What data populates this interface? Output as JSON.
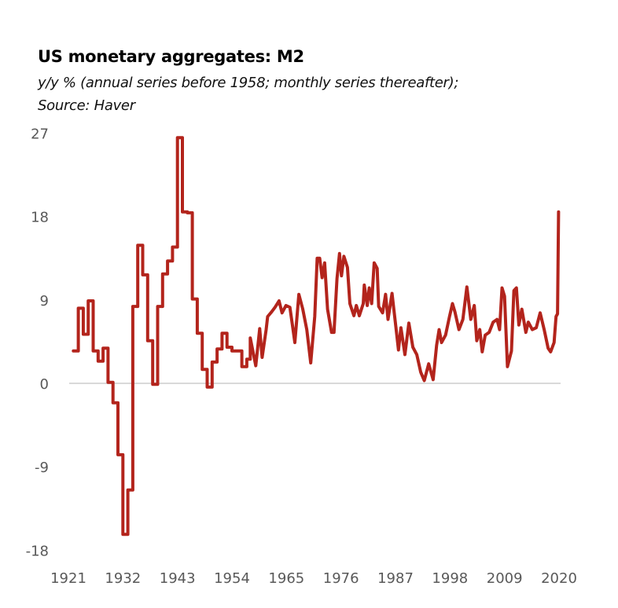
{
  "chart_data": {
    "type": "line",
    "title": "US monetary aggregates: M2",
    "subtitle_lines": [
      "y/y % (annual series before 1958; monthly series thereafter);",
      "Source: Haver"
    ],
    "xlabel": "",
    "ylabel": "",
    "xlim": [
      1921,
      2020
    ],
    "ylim": [
      -18,
      27
    ],
    "x_ticks": [
      "1921",
      "1932",
      "1943",
      "1954",
      "1965",
      "1976",
      "1987",
      "1998",
      "2009",
      "2020"
    ],
    "y_ticks": [
      "27",
      "18",
      "9",
      "0",
      "-9",
      "-18"
    ],
    "grid": false,
    "zero_line": true,
    "legend": "none",
    "line_color": "#b3241c",
    "series": [
      {
        "annual_step": [
          [
            1922,
            3.5
          ],
          [
            1923,
            8.1
          ],
          [
            1924,
            5.3
          ],
          [
            1925,
            8.9
          ],
          [
            1926,
            3.5
          ],
          [
            1927,
            2.4
          ],
          [
            1928,
            3.8
          ],
          [
            1929,
            0.1
          ],
          [
            1930,
            -2.1
          ],
          [
            1931,
            -7.7
          ],
          [
            1932,
            -16.3
          ],
          [
            1933,
            -11.5
          ],
          [
            1934,
            8.3
          ],
          [
            1935,
            14.9
          ],
          [
            1936,
            11.7
          ],
          [
            1937,
            4.6
          ],
          [
            1938,
            -0.1
          ],
          [
            1939,
            8.3
          ],
          [
            1940,
            11.8
          ],
          [
            1941,
            13.2
          ],
          [
            1942,
            14.7
          ],
          [
            1943,
            26.5
          ],
          [
            1944,
            18.5
          ],
          [
            1945,
            18.4
          ],
          [
            1946,
            9.1
          ],
          [
            1947,
            5.4
          ],
          [
            1948,
            1.5
          ],
          [
            1949,
            -0.4
          ],
          [
            1950,
            2.3
          ],
          [
            1951,
            3.7
          ],
          [
            1952,
            5.4
          ],
          [
            1953,
            3.9
          ],
          [
            1954,
            3.5
          ],
          [
            1955,
            3.5
          ],
          [
            1956,
            1.8
          ],
          [
            1957,
            2.6
          ]
        ],
        "monthly": [
          [
            1957.7,
            4.9
          ],
          [
            1958.8,
            1.9
          ],
          [
            1959.6,
            5.9
          ],
          [
            1960.1,
            2.8
          ],
          [
            1960.9,
            5.8
          ],
          [
            1961.2,
            7.2
          ],
          [
            1962.0,
            7.7
          ],
          [
            1962.7,
            8.2
          ],
          [
            1963.5,
            8.9
          ],
          [
            1964.1,
            7.6
          ],
          [
            1964.9,
            8.4
          ],
          [
            1965.7,
            8.2
          ],
          [
            1966.2,
            6.3
          ],
          [
            1966.7,
            4.4
          ],
          [
            1967.5,
            9.6
          ],
          [
            1968.3,
            8.0
          ],
          [
            1969.1,
            5.8
          ],
          [
            1969.9,
            2.2
          ],
          [
            1970.7,
            7.2
          ],
          [
            1971.2,
            13.5
          ],
          [
            1971.7,
            13.5
          ],
          [
            1972.2,
            11.4
          ],
          [
            1972.7,
            13.0
          ],
          [
            1973.3,
            8.0
          ],
          [
            1974.1,
            5.5
          ],
          [
            1974.6,
            5.5
          ],
          [
            1975.2,
            11.3
          ],
          [
            1975.7,
            14.0
          ],
          [
            1976.1,
            11.6
          ],
          [
            1976.6,
            13.7
          ],
          [
            1977.3,
            12.5
          ],
          [
            1977.8,
            8.6
          ],
          [
            1978.6,
            7.3
          ],
          [
            1979.1,
            8.4
          ],
          [
            1979.7,
            7.3
          ],
          [
            1980.5,
            8.6
          ],
          [
            1980.7,
            10.6
          ],
          [
            1981.3,
            8.4
          ],
          [
            1981.7,
            10.3
          ],
          [
            1982.2,
            8.6
          ],
          [
            1982.7,
            13.0
          ],
          [
            1983.3,
            12.4
          ],
          [
            1983.6,
            8.3
          ],
          [
            1984.4,
            7.6
          ],
          [
            1985.0,
            9.6
          ],
          [
            1985.5,
            6.9
          ],
          [
            1986.3,
            9.7
          ],
          [
            1987.1,
            6.0
          ],
          [
            1987.6,
            3.6
          ],
          [
            1988.1,
            6.0
          ],
          [
            1988.9,
            3.1
          ],
          [
            1989.7,
            6.5
          ],
          [
            1990.5,
            3.9
          ],
          [
            1991.3,
            3.1
          ],
          [
            1992.1,
            1.2
          ],
          [
            1992.8,
            0.3
          ],
          [
            1993.7,
            2.1
          ],
          [
            1994.6,
            0.4
          ],
          [
            1995.3,
            4.1
          ],
          [
            1995.8,
            5.8
          ],
          [
            1996.3,
            4.4
          ],
          [
            1997.1,
            5.2
          ],
          [
            1997.9,
            7.2
          ],
          [
            1998.5,
            8.6
          ],
          [
            1999.0,
            7.7
          ],
          [
            1999.8,
            5.8
          ],
          [
            2000.6,
            6.9
          ],
          [
            2001.4,
            10.4
          ],
          [
            2002.2,
            6.9
          ],
          [
            2002.9,
            8.4
          ],
          [
            2003.4,
            4.6
          ],
          [
            2004.0,
            5.8
          ],
          [
            2004.5,
            3.4
          ],
          [
            2005.1,
            5.2
          ],
          [
            2005.9,
            5.5
          ],
          [
            2006.7,
            6.6
          ],
          [
            2007.5,
            6.9
          ],
          [
            2008.0,
            5.8
          ],
          [
            2008.5,
            10.3
          ],
          [
            2009.0,
            9.4
          ],
          [
            2009.6,
            1.8
          ],
          [
            2010.4,
            3.5
          ],
          [
            2010.9,
            10.0
          ],
          [
            2011.4,
            10.3
          ],
          [
            2011.9,
            6.3
          ],
          [
            2012.5,
            8.0
          ],
          [
            2013.3,
            5.5
          ],
          [
            2013.8,
            6.6
          ],
          [
            2014.6,
            5.8
          ],
          [
            2015.4,
            6.0
          ],
          [
            2016.2,
            7.6
          ],
          [
            2017.0,
            5.8
          ],
          [
            2017.8,
            3.8
          ],
          [
            2018.3,
            3.4
          ],
          [
            2019.0,
            4.4
          ],
          [
            2019.4,
            7.2
          ],
          [
            2019.7,
            7.5
          ],
          [
            2019.9,
            18.5
          ]
        ]
      }
    ]
  }
}
